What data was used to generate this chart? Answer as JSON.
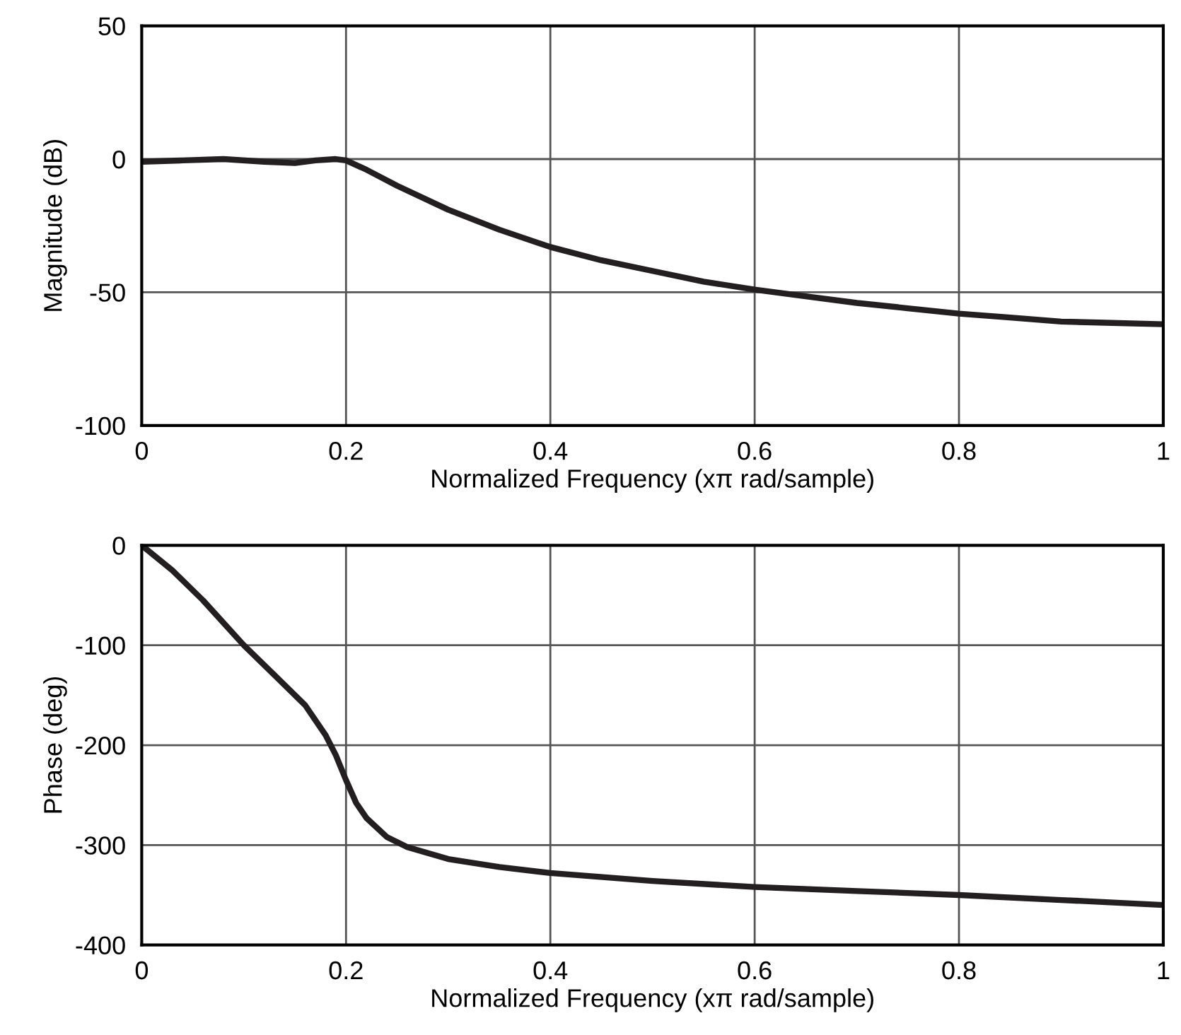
{
  "chart_data": [
    {
      "type": "line",
      "xlabel": "Normalized Frequency (xπ rad/sample)",
      "ylabel": "Magnitude (dB)",
      "xlim": [
        0,
        1
      ],
      "xticks": [
        0,
        0.2,
        0.4,
        0.6,
        0.8,
        1
      ],
      "ylim": [
        -100,
        50
      ],
      "yticks": [
        -100,
        -50,
        0,
        50
      ],
      "grid": true,
      "series": [
        {
          "color": "#231f20",
          "x": [
            0,
            0.04,
            0.08,
            0.12,
            0.15,
            0.17,
            0.19,
            0.2,
            0.22,
            0.25,
            0.3,
            0.35,
            0.4,
            0.45,
            0.5,
            0.55,
            0.6,
            0.65,
            0.7,
            0.75,
            0.8,
            0.85,
            0.9,
            0.95,
            1.0
          ],
          "values": [
            -1,
            -0.5,
            0,
            -1,
            -1.5,
            -0.5,
            0,
            -0.5,
            -4,
            -10,
            -19,
            -26.5,
            -33,
            -38,
            -42,
            -46,
            -49,
            -51.5,
            -54,
            -56,
            -58,
            -59.5,
            -61,
            -61.5,
            -62
          ]
        }
      ]
    },
    {
      "type": "line",
      "xlabel": "Normalized Frequency (xπ rad/sample)",
      "ylabel": "Phase (deg)",
      "xlim": [
        0,
        1
      ],
      "xticks": [
        0,
        0.2,
        0.4,
        0.6,
        0.8,
        1
      ],
      "ylim": [
        -400,
        0
      ],
      "yticks": [
        -400,
        -300,
        -200,
        -100,
        0
      ],
      "grid": true,
      "series": [
        {
          "color": "#231f20",
          "x": [
            0,
            0.03,
            0.06,
            0.1,
            0.13,
            0.16,
            0.18,
            0.19,
            0.2,
            0.21,
            0.22,
            0.24,
            0.26,
            0.3,
            0.35,
            0.4,
            0.5,
            0.6,
            0.7,
            0.8,
            0.9,
            1.0
          ],
          "values": [
            0,
            -25,
            -55,
            -100,
            -130,
            -160,
            -190,
            -210,
            -235,
            -258,
            -273,
            -292,
            -302,
            -314,
            -322,
            -328,
            -336,
            -342,
            -346,
            -350,
            -355,
            -360
          ]
        }
      ]
    }
  ]
}
